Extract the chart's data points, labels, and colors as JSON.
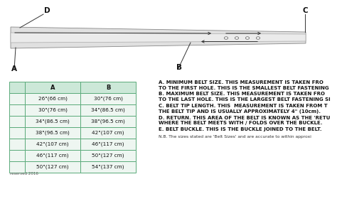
{
  "table_col_a": [
    "26\"(66 cm)",
    "30\"(76 cm)",
    "34\"(86.5 cm)",
    "38\"(96.5 cm)",
    "42\"(107 cm)",
    "46\"(117 cm)",
    "50\"(127 cm)"
  ],
  "table_col_b": [
    "30\"(76 cm)",
    "34\"(86.5 cm)",
    "38\"(96.5 cm)",
    "42\"(107 cm)",
    "46\"(117 cm)",
    "50\"(127 cm)",
    "54\"(137 cm)"
  ],
  "table_header_a": "A",
  "table_header_b": "B",
  "note_A": "A. MINIMUM BELT SIZE. THIS MEASUREMENT IS TAKEN FRO",
  "note_A2": "TO THE FIRST HOLE. THIS IS THE SMALLEST BELT FASTENING",
  "note_B": "B. MAXIMUM BELT SIZE. THIS MEASUREMENT IS TAKEN FRO",
  "note_B2": "TO THE LAST HOLE. THIS IS THE LARGEST BELT FASTENING SI",
  "note_C": "C. BELT TIP LENGTH. THIS  MEASUREMENT IS TAKEN FROM T",
  "note_C2": "THE BELT TIP AND IS USUALLY APPROXIMATELY 4\" (10cm).",
  "note_D": "D. RETURN. THIS AREA OF THE BELT IS KNOWN AS THE 'RETU",
  "note_D2": "WHERE THE BELT MEETS WITH / FOLDS OVER THE BUCKLE.",
  "note_E": "E. BELT BUCKLE. THIS IS THE BUCKLE JOINED TO THE BELT.",
  "note_NB": "N.B. The sizes stated are 'Belt Sizes' and are accurate to within approxi",
  "label_D": "D",
  "label_C": "C",
  "label_A": "A",
  "label_B": "B",
  "copyright": "reserved 2016",
  "bg_color": "#ffffff",
  "table_border_color": "#5aaa7a",
  "table_header_bg": "#cce8d8",
  "table_row_bg": "#eef6f1",
  "diagram_text_color": "#222222"
}
